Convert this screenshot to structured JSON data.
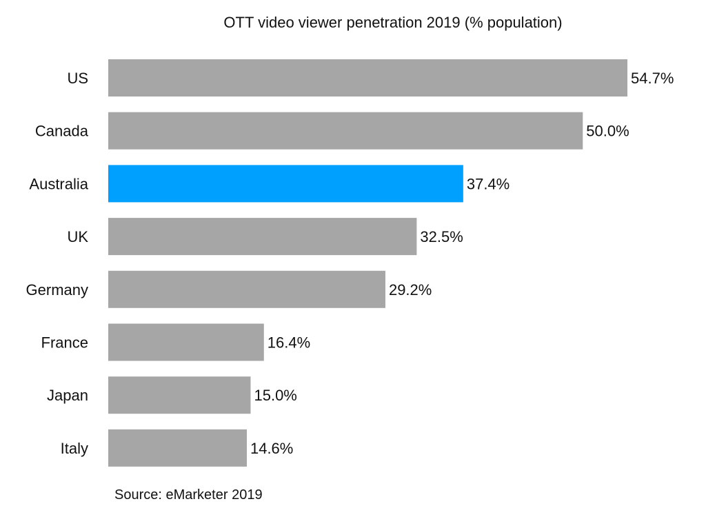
{
  "chart_data": {
    "type": "bar",
    "orientation": "horizontal",
    "title": "OTT video viewer penetration 2019 (% population)",
    "categories": [
      "US",
      "Canada",
      "Australia",
      "UK",
      "Germany",
      "France",
      "Japan",
      "Italy"
    ],
    "values": [
      54.7,
      50.0,
      37.4,
      32.5,
      29.2,
      16.4,
      15.0,
      14.6
    ],
    "data_labels": [
      "54.7%",
      "50.0%",
      "37.4%",
      "32.5%",
      "29.2%",
      "16.4%",
      "15.0%",
      "14.6%"
    ],
    "xlim": [
      0,
      54.7
    ],
    "grid": false,
    "highlight_category": "Australia",
    "colors": {
      "default": "#a6a6a6",
      "highlight": "#00a0ff"
    },
    "source": "Source: eMarketer 2019"
  }
}
